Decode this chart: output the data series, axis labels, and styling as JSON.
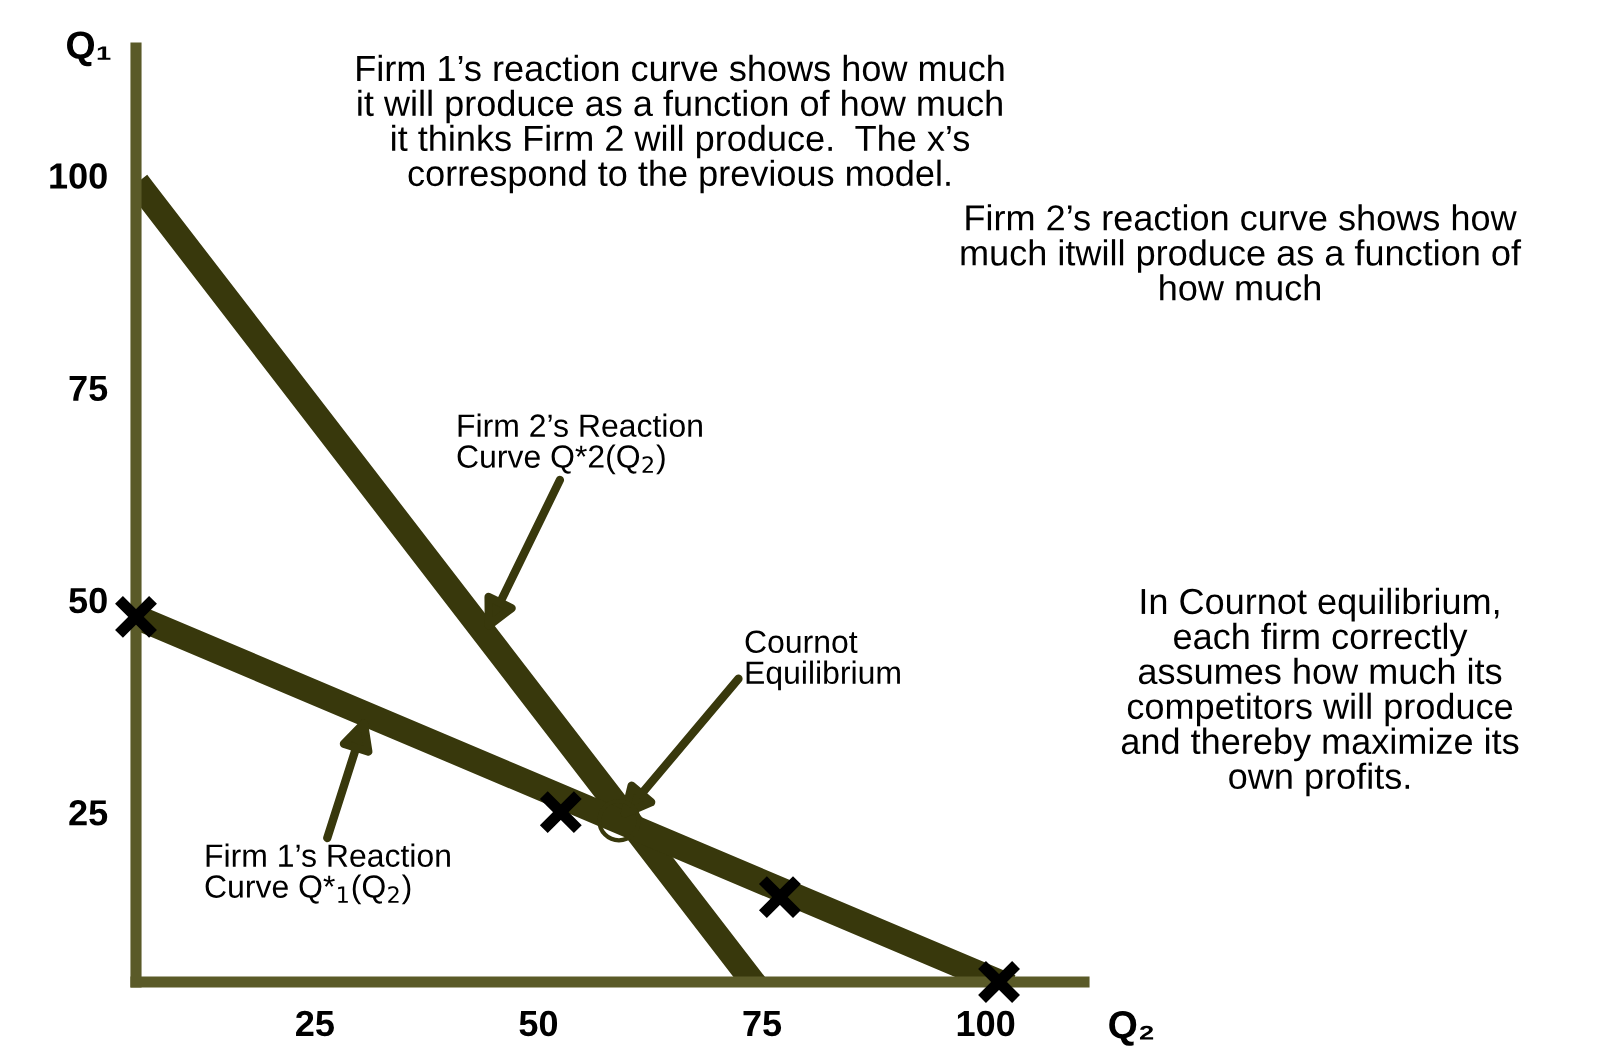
{
  "chart_data": {
    "type": "line",
    "xlabel": "Q₂",
    "ylabel": "Q₁",
    "xlim": [
      5,
      111
    ],
    "ylim": [
      5,
      115
    ],
    "xticks": [
      25,
      50,
      75,
      100
    ],
    "yticks": [
      25,
      50,
      75,
      100
    ],
    "grid": false,
    "legend": false,
    "series": [
      {
        "type": "line",
        "color": "#38380c",
        "x": [
          6,
          74
        ],
        "values": [
          98,
          5
        ]
      },
      {
        "type": "line",
        "color": "#38380c",
        "x": [
          5,
          101.5
        ],
        "values": [
          48,
          5
        ]
      },
      {
        "type": "scatter",
        "marker": "cross",
        "color": "#000000",
        "x": [
          5,
          52.5,
          77,
          101.5
        ],
        "values": [
          48,
          25,
          15,
          5
        ]
      },
      {
        "type": "scatter",
        "marker": "circle",
        "color": "#38380c",
        "x": [
          59
        ],
        "values": [
          24
        ]
      }
    ],
    "annotations": [
      "Firm 1’s reaction curve shows how much\nit will produce as a function of how much\nit thinks Firm 2 will produce.  The x’s\ncorrespond to the previous model.",
      "Firm 2’s reaction curve shows how\nmuch itwill produce as a function of\nhow much",
      "In Cournot equilibrium,\neach firm correctly\nassumes how much its\ncompetitors will produce\nand thereby maximize its\nown profits.",
      {
        "text": "Firm 2’s Reaction\nCurve Q*2(Q$_{2}$)",
        "x": 44,
        "y": 46
      },
      {
        "text": "Firm 1’s Reaction\nCurve Q*$_{1}$(Q$_{2}$)",
        "x": 30.8,
        "y": 36.5
      },
      {
        "text": "Cournot\nEquilibrium",
        "x": 59,
        "y": 24
      }
    ]
  }
}
